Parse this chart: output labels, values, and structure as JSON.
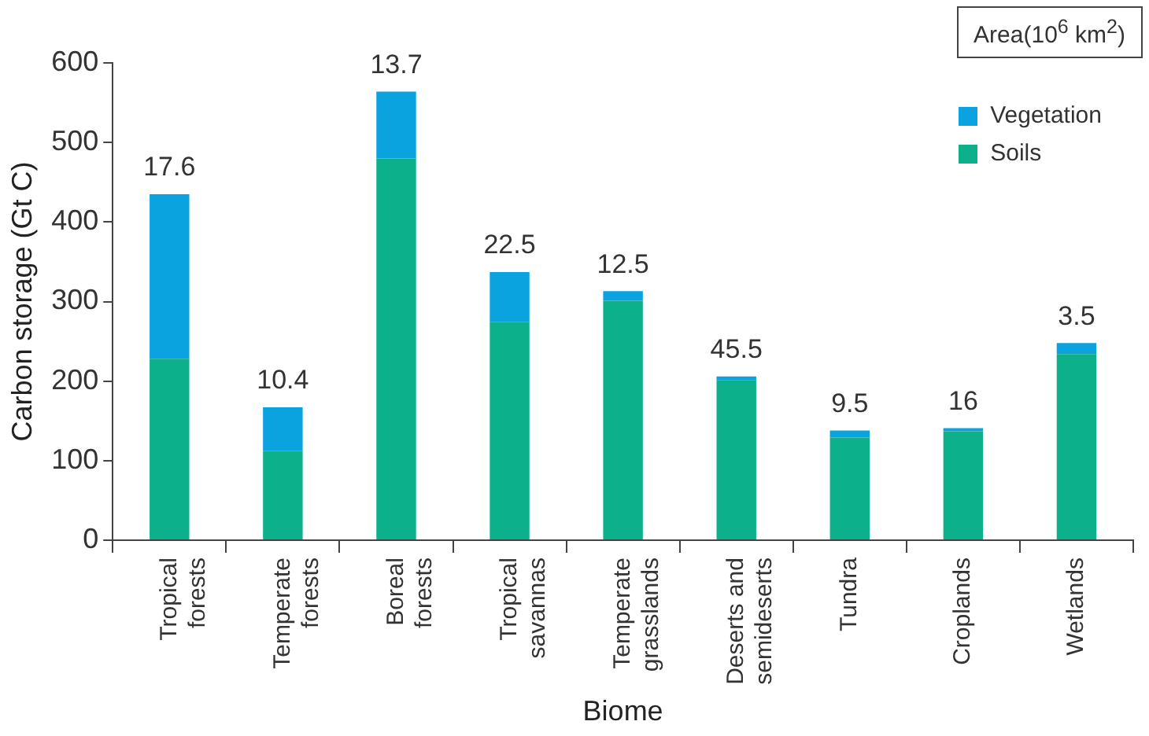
{
  "chart_data": {
    "type": "bar",
    "stacked": true,
    "xlabel": "Biome",
    "ylabel": "Carbon storage (Gt C)",
    "legend_title": "Area(10$^{6}$ km$^{2}$)",
    "legend": "top right",
    "categories": [
      "Tropical forests",
      "Temperate forests",
      "Boreal forests",
      "Tropical savannas",
      "Temperate grasslands",
      "Deserts and semideserts",
      "Tundra",
      "Croplands",
      "Wetlands"
    ],
    "series": [
      {
        "name": "Soils",
        "color": "#0cb18c",
        "values": [
          228,
          112,
          480,
          274,
          301,
          201,
          129,
          137,
          234
        ]
      },
      {
        "name": "Vegetation",
        "color": "#0aa3e0",
        "values": [
          207,
          55,
          84,
          63,
          12,
          5,
          9,
          4,
          14
        ]
      }
    ],
    "ylim": [
      0,
      600
    ],
    "yticks": [
      0,
      100,
      200,
      300,
      400,
      500,
      600
    ],
    "grid": false,
    "annotations": [
      {
        "text": "17.6",
        "x": "Tropical forests",
        "y": 435
      },
      {
        "text": "10.4",
        "x": "Temperate forests",
        "y": 167
      },
      {
        "text": "13.7",
        "x": "Boreal forests",
        "y": 564
      },
      {
        "text": "22.5",
        "x": "Tropical savannas",
        "y": 337
      },
      {
        "text": "12.5",
        "x": "Temperate grasslands",
        "y": 313
      },
      {
        "text": "45.5",
        "x": "Deserts and semideserts",
        "y": 206
      },
      {
        "text": "9.5",
        "x": "Tundra",
        "y": 138
      },
      {
        "text": "16",
        "x": "Croplands",
        "y": 141
      },
      {
        "text": "3.5",
        "x": "Wetlands",
        "y": 248
      }
    ]
  }
}
